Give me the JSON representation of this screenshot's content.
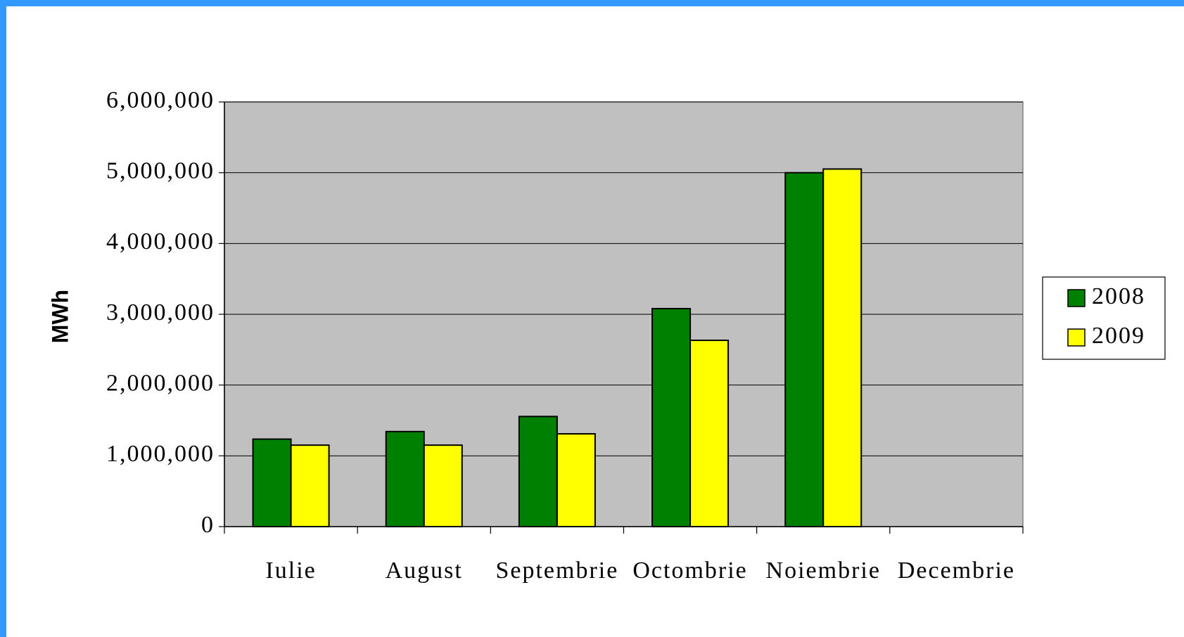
{
  "chart_data": {
    "type": "bar",
    "ylabel": "MWh",
    "categories": [
      "Iulie",
      "August",
      "Septembrie",
      "Octombrie",
      "Noiembrie",
      "Decembrie"
    ],
    "series": [
      {
        "name": "2008",
        "color": "#008000",
        "values": [
          1236000,
          1343000,
          1556000,
          3080000,
          5000000,
          null
        ]
      },
      {
        "name": "2009",
        "color": "#ffff00",
        "values": [
          1151000,
          1151000,
          1311000,
          2632000,
          5052000,
          null
        ]
      }
    ],
    "ylim": [
      0,
      6000000
    ],
    "yticks": [
      0,
      {
        "value": 1000000,
        "label": "1,000,000"
      },
      {
        "value": 2000000,
        "label": "2,000,000"
      },
      {
        "value": 3000000,
        "label": "3,000,000"
      },
      {
        "value": 4000000,
        "label": "4,000,000"
      },
      {
        "value": 5000000,
        "label": "5,000,000"
      },
      {
        "value": 6000000,
        "label": "6,000,000"
      }
    ],
    "grid": true,
    "legend": "right"
  }
}
